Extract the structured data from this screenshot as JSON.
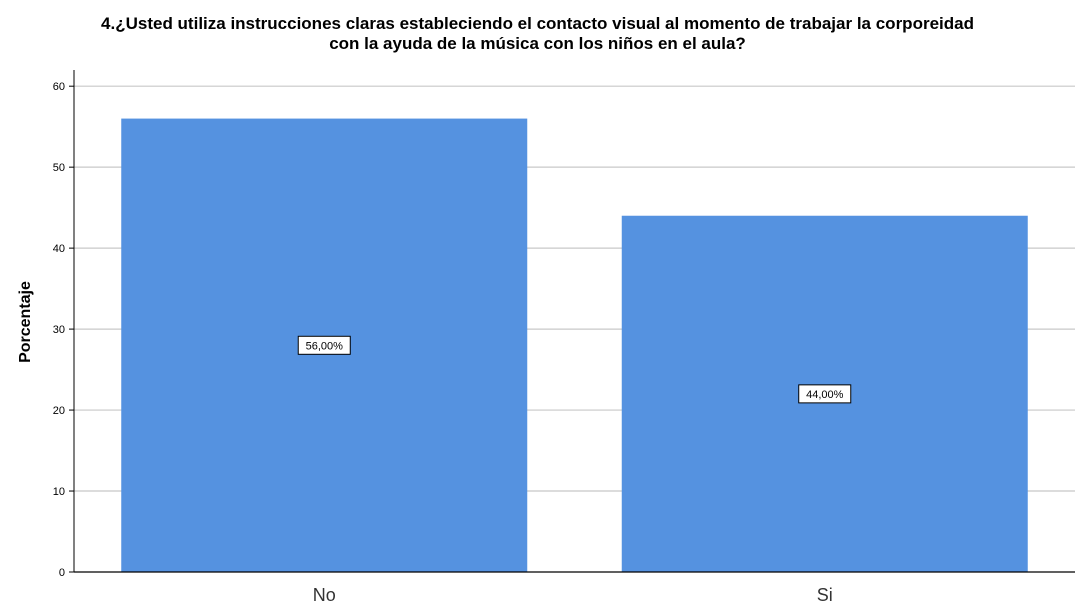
{
  "chart_data": {
    "type": "bar",
    "title": "4.¿Usted utiliza instrucciones claras estableciendo el contacto visual al momento de trabajar la corporeidad con la ayuda de la música con los niños en el aula?",
    "title_lines": [
      "4.¿Usted utiliza instrucciones claras estableciendo el contacto visual al momento de trabajar la corporeidad",
      "con la ayuda de la música con los niños en el aula?"
    ],
    "xlabel": "",
    "ylabel": "Porcentaje",
    "categories": [
      "No",
      "Si"
    ],
    "values": [
      56,
      44
    ],
    "data_labels": [
      "56,00%",
      "44,00%"
    ],
    "ylim": [
      0,
      62
    ],
    "yticks": [
      0,
      10,
      20,
      30,
      40,
      50,
      60
    ],
    "grid": true,
    "bar_color": "#5592e0",
    "grid_color": "#c8c8c8"
  }
}
